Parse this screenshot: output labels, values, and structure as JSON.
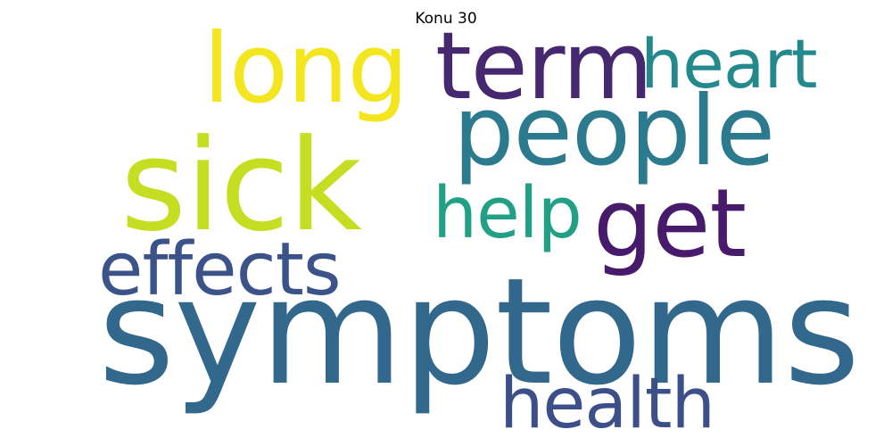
{
  "title": "Konu 30",
  "words": [
    {
      "text": "symptoms",
      "color": "#33688d"
    },
    {
      "text": "sick",
      "color": "#c5de22"
    },
    {
      "text": "people",
      "color": "#2c7a8e"
    },
    {
      "text": "long",
      "color": "#f3e51e"
    },
    {
      "text": "term",
      "color": "#45286f"
    },
    {
      "text": "heart",
      "color": "#24898c"
    },
    {
      "text": "get",
      "color": "#481a6c"
    },
    {
      "text": "help",
      "color": "#22a085"
    },
    {
      "text": "effects",
      "color": "#3b5389"
    },
    {
      "text": "health",
      "color": "#3d4f89"
    }
  ]
}
